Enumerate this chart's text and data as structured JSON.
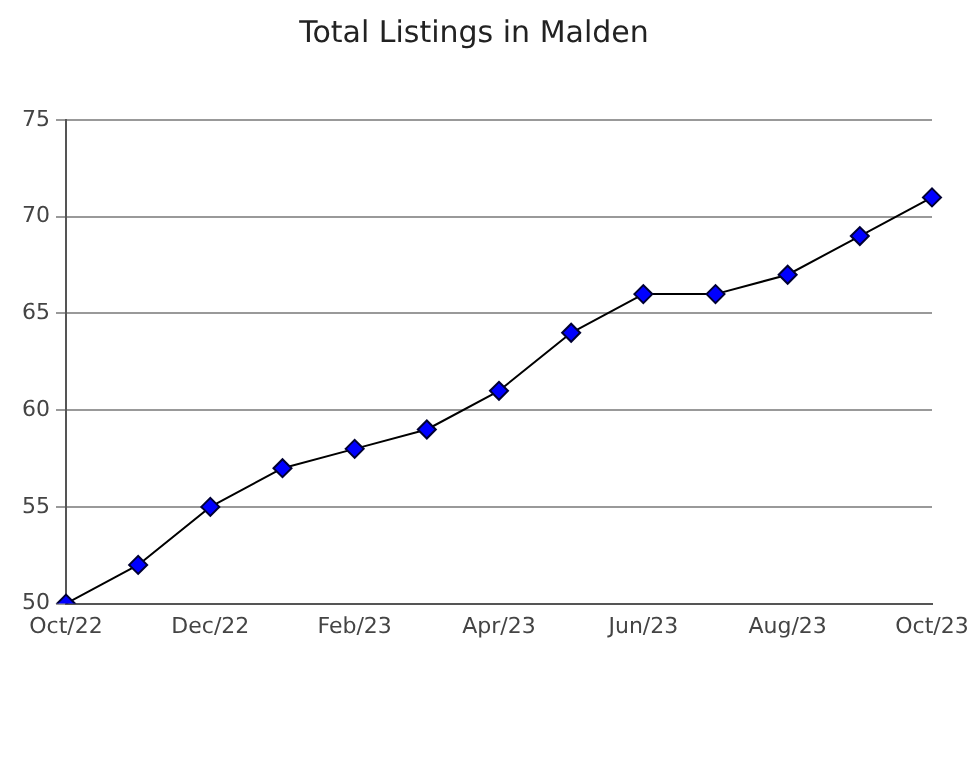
{
  "chart_data": {
    "type": "line",
    "title": "Total Listings in Malden",
    "categories": [
      "Oct/22",
      null,
      "Dec/22",
      null,
      "Feb/23",
      null,
      "Apr/23",
      null,
      "Jun/23",
      null,
      "Aug/23",
      null,
      "Oct/23"
    ],
    "series": [
      {
        "color": "#0000ff",
        "values": [
          50,
          52,
          55,
          57,
          58,
          59,
          61,
          64,
          66,
          66,
          67,
          69,
          71
        ]
      }
    ],
    "ylim": [
      50,
      75
    ],
    "yticks": [
      50,
      55,
      60,
      65,
      70,
      75
    ],
    "grid": "y",
    "legend": false,
    "marker": "diamond",
    "line_style": "solid"
  }
}
